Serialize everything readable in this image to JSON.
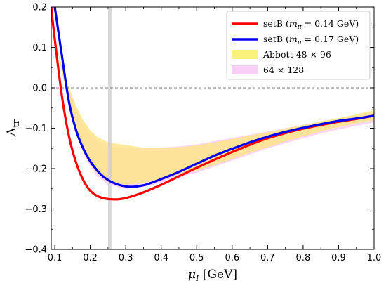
{
  "chart_data": {
    "type": "line",
    "xlabel": "μ_I [GeV]",
    "ylabel": "Δ_tr",
    "xlim": [
      0.09,
      1.0
    ],
    "ylim": [
      -0.4,
      0.2
    ],
    "xticks": [
      0.1,
      0.2,
      0.3,
      0.4,
      0.5,
      0.6,
      0.7,
      0.8,
      0.9,
      1.0
    ],
    "xtick_labels": [
      "0.1",
      "0.2",
      "0.3",
      "0.4",
      "0.5",
      "0.6",
      "0.7",
      "0.8",
      "0.9",
      "1.0"
    ],
    "yticks": [
      -0.4,
      -0.3,
      -0.2,
      -0.1,
      0.0,
      0.1,
      0.2
    ],
    "ytick_labels": [
      "−0.4",
      "−0.3",
      "−0.2",
      "−0.1",
      "0.0",
      "0.1",
      "0.2"
    ],
    "grid": false,
    "legend_position": "top-right",
    "reference_line": {
      "y": 0.0,
      "style": "dashed",
      "color": "#555555"
    },
    "vertical_band": {
      "x": 0.255,
      "color": "#cccccc"
    },
    "series": [
      {
        "name": "setB (m_π = 0.14 GeV)",
        "color": "#ff0000",
        "x": [
          0.09,
          0.1,
          0.12,
          0.14,
          0.16,
          0.18,
          0.2,
          0.22,
          0.24,
          0.26,
          0.28,
          0.3,
          0.32,
          0.35,
          0.4,
          0.45,
          0.5,
          0.55,
          0.6,
          0.65,
          0.7,
          0.75,
          0.8,
          0.85,
          0.9,
          0.95,
          1.0
        ],
        "y": [
          0.2,
          0.12,
          -0.02,
          -0.12,
          -0.185,
          -0.228,
          -0.255,
          -0.268,
          -0.274,
          -0.276,
          -0.276,
          -0.273,
          -0.268,
          -0.259,
          -0.24,
          -0.219,
          -0.198,
          -0.178,
          -0.159,
          -0.141,
          -0.125,
          -0.112,
          -0.101,
          -0.092,
          -0.084,
          -0.077,
          -0.069
        ]
      },
      {
        "name": "setB (m_π = 0.17 GeV)",
        "color": "#0000ee",
        "x": [
          0.1,
          0.12,
          0.14,
          0.16,
          0.18,
          0.2,
          0.22,
          0.24,
          0.26,
          0.28,
          0.3,
          0.32,
          0.34,
          0.36,
          0.4,
          0.45,
          0.5,
          0.55,
          0.6,
          0.65,
          0.7,
          0.75,
          0.8,
          0.85,
          0.9,
          0.95,
          1.0
        ],
        "y": [
          0.2,
          0.08,
          -0.035,
          -0.105,
          -0.15,
          -0.182,
          -0.205,
          -0.222,
          -0.233,
          -0.24,
          -0.244,
          -0.245,
          -0.243,
          -0.239,
          -0.226,
          -0.208,
          -0.188,
          -0.168,
          -0.151,
          -0.135,
          -0.121,
          -0.109,
          -0.099,
          -0.09,
          -0.082,
          -0.076,
          -0.069
        ]
      }
    ],
    "bands": [
      {
        "name": "64 × 128",
        "color": "#f9d0f5",
        "x": [
          0.1,
          0.12,
          0.14,
          0.16,
          0.18,
          0.2,
          0.22,
          0.25,
          0.3,
          0.35,
          0.4,
          0.45,
          0.5,
          0.55,
          0.6,
          0.65,
          0.7,
          0.75,
          0.8,
          0.85,
          0.9,
          0.95,
          1.0
        ],
        "upper": [
          0.12,
          0.05,
          -0.005,
          -0.055,
          -0.09,
          -0.115,
          -0.132,
          -0.145,
          -0.15,
          -0.15,
          -0.148,
          -0.145,
          -0.14,
          -0.132,
          -0.124,
          -0.116,
          -0.108,
          -0.1,
          -0.092,
          -0.085,
          -0.078,
          -0.071,
          -0.065
        ],
        "lower": [
          0.12,
          0.04,
          -0.04,
          -0.11,
          -0.16,
          -0.195,
          -0.22,
          -0.24,
          -0.25,
          -0.245,
          -0.235,
          -0.222,
          -0.21,
          -0.195,
          -0.18,
          -0.165,
          -0.15,
          -0.137,
          -0.125,
          -0.113,
          -0.103,
          -0.094,
          -0.086
        ]
      },
      {
        "name": "Abbott 48 × 96",
        "color": "#fde48a",
        "x": [
          0.1,
          0.12,
          0.14,
          0.16,
          0.18,
          0.2,
          0.22,
          0.25,
          0.3,
          0.35,
          0.4,
          0.45,
          0.5,
          0.55,
          0.6,
          0.65,
          0.7,
          0.75,
          0.8,
          0.85,
          0.9,
          0.95,
          1.0
        ],
        "upper": [
          0.12,
          0.055,
          0.0,
          -0.045,
          -0.08,
          -0.105,
          -0.122,
          -0.135,
          -0.142,
          -0.148,
          -0.148,
          -0.147,
          -0.143,
          -0.135,
          -0.127,
          -0.118,
          -0.11,
          -0.101,
          -0.092,
          -0.083,
          -0.075,
          -0.066,
          -0.055
        ],
        "lower": [
          0.12,
          0.04,
          -0.035,
          -0.105,
          -0.155,
          -0.188,
          -0.212,
          -0.23,
          -0.24,
          -0.235,
          -0.225,
          -0.214,
          -0.205,
          -0.191,
          -0.176,
          -0.161,
          -0.147,
          -0.133,
          -0.12,
          -0.108,
          -0.097,
          -0.088,
          -0.08
        ]
      }
    ],
    "legend": {
      "setB_a_prefix": "setB (",
      "setB_a_mass": "m",
      "setB_a_sub": "π",
      "setB_a_value": " = 0.14 GeV)",
      "setB_b_prefix": "setB (",
      "setB_b_mass": "m",
      "setB_b_sub": "π",
      "setB_b_value": " = 0.17 GeV)",
      "abbott": "Abbott 48 × 96",
      "lattice64": "64 × 128"
    },
    "axis_text": {
      "xlabel_main": "μ",
      "xlabel_sub": "I",
      "xlabel_unit": " [GeV]",
      "ylabel_main": "Δ",
      "ylabel_sub": "tr"
    }
  }
}
